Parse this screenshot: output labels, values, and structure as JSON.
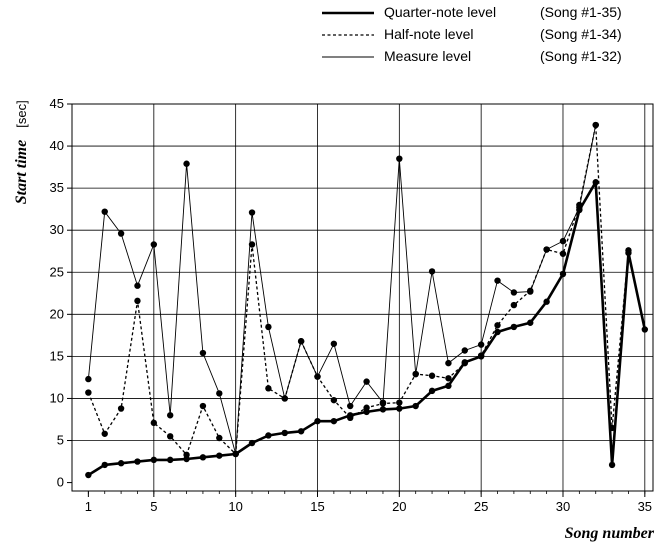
{
  "chart_data": {
    "type": "line",
    "xlabel": "Song number",
    "ylabel": "Start time",
    "yunit": "[sec]",
    "xlim": [
      0,
      35.5
    ],
    "ylim": [
      -1,
      45
    ],
    "xticks": [
      1,
      5,
      10,
      15,
      20,
      25,
      30,
      35
    ],
    "yticks": [
      0,
      5,
      10,
      15,
      20,
      25,
      30,
      35,
      40,
      45
    ],
    "grid": true,
    "legend_position": "top-right",
    "series": [
      {
        "name": "Quarter-note level",
        "note": "(Song #1-35)",
        "style": "thick-solid",
        "x": [
          1,
          2,
          3,
          4,
          5,
          6,
          7,
          8,
          9,
          10,
          11,
          12,
          13,
          14,
          15,
          16,
          17,
          18,
          19,
          20,
          21,
          22,
          23,
          24,
          25,
          26,
          27,
          28,
          29,
          30,
          31,
          32,
          33,
          34,
          35
        ],
        "values": [
          0.9,
          2.1,
          2.3,
          2.5,
          2.7,
          2.7,
          2.8,
          3.0,
          3.2,
          3.4,
          4.7,
          5.6,
          5.9,
          6.1,
          7.3,
          7.3,
          8.0,
          8.4,
          8.7,
          8.8,
          9.1,
          10.9,
          11.5,
          14.3,
          15.0,
          17.9,
          18.5,
          19.0,
          21.5,
          24.8,
          32.4,
          35.7,
          2.1,
          27.3,
          18.2
        ]
      },
      {
        "name": "Half-note level",
        "note": "(Song #1-34)",
        "style": "dashed",
        "x": [
          1,
          2,
          3,
          4,
          5,
          6,
          7,
          8,
          9,
          10,
          11,
          12,
          13,
          14,
          15,
          16,
          17,
          18,
          19,
          20,
          21,
          22,
          23,
          24,
          25,
          26,
          27,
          28,
          29,
          30,
          31,
          32,
          33,
          34
        ],
        "values": [
          10.7,
          5.8,
          8.8,
          21.6,
          7.1,
          5.5,
          3.3,
          9.1,
          5.3,
          3.4,
          28.3,
          11.2,
          10.0,
          16.8,
          12.6,
          9.8,
          7.7,
          8.9,
          9.4,
          9.5,
          12.9,
          12.7,
          12.4,
          14.2,
          15.1,
          18.7,
          21.1,
          22.8,
          27.7,
          27.2,
          33.0,
          42.5,
          6.5,
          27.6
        ]
      },
      {
        "name": "Measure level",
        "note": "(Song #1-32)",
        "style": "thin-solid",
        "x": [
          1,
          2,
          3,
          4,
          5,
          6,
          7,
          8,
          9,
          10,
          11,
          12,
          13,
          14,
          15,
          16,
          17,
          18,
          19,
          20,
          21,
          22,
          23,
          24,
          25,
          26,
          27,
          28,
          29,
          30,
          31,
          32
        ],
        "values": [
          12.3,
          32.2,
          29.6,
          23.4,
          28.3,
          8.0,
          37.9,
          15.4,
          10.6,
          3.4,
          32.1,
          18.5,
          10.0,
          16.8,
          12.6,
          16.5,
          9.1,
          12.0,
          9.5,
          38.5,
          12.9,
          25.1,
          14.2,
          15.7,
          16.4,
          24.0,
          22.6,
          22.7,
          27.7,
          28.7,
          32.7,
          42.5
        ]
      }
    ]
  }
}
